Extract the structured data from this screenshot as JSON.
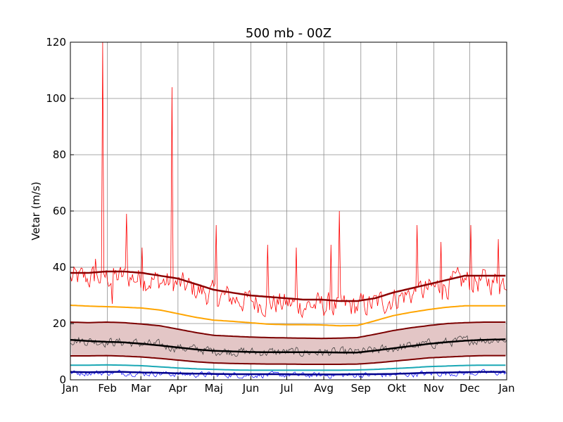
{
  "chart_data": {
    "type": "line",
    "title": "500 mb - 00Z",
    "ylabel": "Vetar (m/s)",
    "xlabel": "",
    "ylim": [
      0,
      120
    ],
    "yticks": [
      0,
      20,
      40,
      60,
      80,
      100,
      120
    ],
    "xlim": [
      0,
      365
    ],
    "month_ticks": [
      {
        "day": 0,
        "label": "Jan"
      },
      {
        "day": 31,
        "label": "Feb"
      },
      {
        "day": 59,
        "label": "Mar"
      },
      {
        "day": 90,
        "label": "Apr"
      },
      {
        "day": 120,
        "label": "Maj"
      },
      {
        "day": 151,
        "label": "Jun"
      },
      {
        "day": 181,
        "label": "Jul"
      },
      {
        "day": 212,
        "label": "Avg"
      },
      {
        "day": 243,
        "label": "Sep"
      },
      {
        "day": 273,
        "label": "Okt"
      },
      {
        "day": 304,
        "label": "Nov"
      },
      {
        "day": 334,
        "label": "Dec"
      },
      {
        "day": 365,
        "label": "Jan"
      }
    ],
    "grid": true,
    "x_days": [
      0,
      15,
      30,
      45,
      60,
      75,
      90,
      105,
      120,
      135,
      150,
      165,
      180,
      195,
      210,
      225,
      240,
      255,
      270,
      285,
      300,
      315,
      330,
      345,
      365
    ],
    "series": [
      {
        "color": "#8b0000",
        "width": 2.5,
        "values": [
          38,
          38,
          38.5,
          38.5,
          38,
          37,
          36,
          34,
          32,
          31,
          30,
          29.5,
          29,
          28.5,
          28.5,
          28,
          28,
          29,
          31,
          32.5,
          34,
          35.5,
          37,
          37,
          37
        ]
      },
      {
        "color": "#ffa500",
        "width": 2,
        "values": [
          26.5,
          26.2,
          26,
          25.8,
          25.5,
          24.8,
          23.5,
          22.2,
          21.2,
          20.8,
          20.3,
          19.8,
          19.6,
          19.6,
          19.5,
          19.2,
          19.3,
          21,
          22.8,
          24,
          25,
          25.8,
          26.3,
          26.3,
          26.3
        ]
      },
      {
        "color": "#7b0000",
        "width": 2,
        "values": [
          20.5,
          20.3,
          20.5,
          20.3,
          19.8,
          19.2,
          18,
          16.8,
          15.8,
          15.5,
          15.2,
          15,
          14.9,
          14.8,
          14.7,
          14.8,
          15,
          16.2,
          17.5,
          18.5,
          19.3,
          20,
          20.3,
          20.5,
          20.5
        ]
      },
      {
        "color": "#000000",
        "width": 2.5,
        "values": [
          14.2,
          13.8,
          13.5,
          13.3,
          12.8,
          12.2,
          11.5,
          10.8,
          10.3,
          10.1,
          9.9,
          9.8,
          9.8,
          9.8,
          9.8,
          9.7,
          9.7,
          10.4,
          11.2,
          12,
          12.8,
          13.4,
          13.9,
          14.2,
          14.4
        ]
      },
      {
        "color": "#7b0000",
        "width": 2,
        "values": [
          8.5,
          8.5,
          8.6,
          8.4,
          8.1,
          7.6,
          7,
          6.4,
          6,
          5.8,
          5.7,
          5.6,
          5.6,
          5.5,
          5.5,
          5.5,
          5.6,
          6,
          6.6,
          7.2,
          7.8,
          8.1,
          8.4,
          8.6,
          8.6
        ]
      },
      {
        "color": "#1aa8b5",
        "width": 2,
        "values": [
          5.2,
          5.2,
          5.3,
          5.2,
          5,
          4.6,
          4.2,
          3.9,
          3.7,
          3.5,
          3.4,
          3.4,
          3.4,
          3.4,
          3.4,
          3.4,
          3.5,
          3.7,
          4,
          4.3,
          4.7,
          4.9,
          5.1,
          5.2,
          5.2
        ]
      },
      {
        "color": "#00008b",
        "width": 2.5,
        "values": [
          2.8,
          2.7,
          2.8,
          2.8,
          2.6,
          2.5,
          2.3,
          2.2,
          2.1,
          2,
          2,
          2,
          2,
          1.9,
          1.9,
          1.9,
          2,
          2,
          2.1,
          2.3,
          2.5,
          2.6,
          2.7,
          2.8,
          2.8
        ]
      }
    ],
    "band": {
      "fill": "#e3c6c6",
      "upper_series": 2,
      "lower_series": 4
    },
    "daily_series": [
      {
        "color": "#ff0000",
        "width": 0.8,
        "base_series": 0,
        "amplitude": 7,
        "offset": -2,
        "spikes": [
          {
            "day": 21,
            "value": 43
          },
          {
            "day": 27,
            "value": 120
          },
          {
            "day": 35,
            "value": 27
          },
          {
            "day": 47,
            "value": 59
          },
          {
            "day": 60,
            "value": 47
          },
          {
            "day": 85,
            "value": 104
          },
          {
            "day": 122,
            "value": 55
          },
          {
            "day": 165,
            "value": 48
          },
          {
            "day": 189,
            "value": 47
          },
          {
            "day": 218,
            "value": 48
          },
          {
            "day": 225,
            "value": 60
          },
          {
            "day": 290,
            "value": 55
          },
          {
            "day": 310,
            "value": 49
          },
          {
            "day": 335,
            "value": 55
          },
          {
            "day": 358,
            "value": 50
          }
        ]
      },
      {
        "color": "#333333",
        "width": 0.7,
        "base_series": 3,
        "amplitude": 2.6,
        "offset": 0,
        "spikes": []
      },
      {
        "color": "#0000ff",
        "width": 0.7,
        "base_series": 6,
        "amplitude": 1.6,
        "offset": -0.3,
        "spikes": []
      }
    ]
  }
}
